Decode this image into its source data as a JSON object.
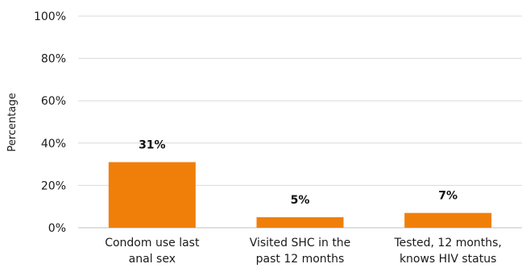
{
  "chart_data": {
    "type": "bar",
    "categories": [
      [
        "Condom use last",
        "anal sex"
      ],
      [
        "Visited SHC in the",
        "past 12 months"
      ],
      [
        "Tested, 12 months,",
        "knows HIV status"
      ]
    ],
    "values": [
      31,
      5,
      7
    ],
    "data_labels": [
      "31%",
      "5%",
      "7%"
    ],
    "ylabel": "Percentage",
    "ylim": [
      0,
      100
    ],
    "yticks": [
      0,
      20,
      40,
      60,
      80,
      100
    ],
    "ytick_labels": [
      "0%",
      "20%",
      "40%",
      "60%",
      "80%",
      "100%"
    ],
    "grid": true,
    "legend": "none",
    "bar_color": "#f07f09"
  }
}
